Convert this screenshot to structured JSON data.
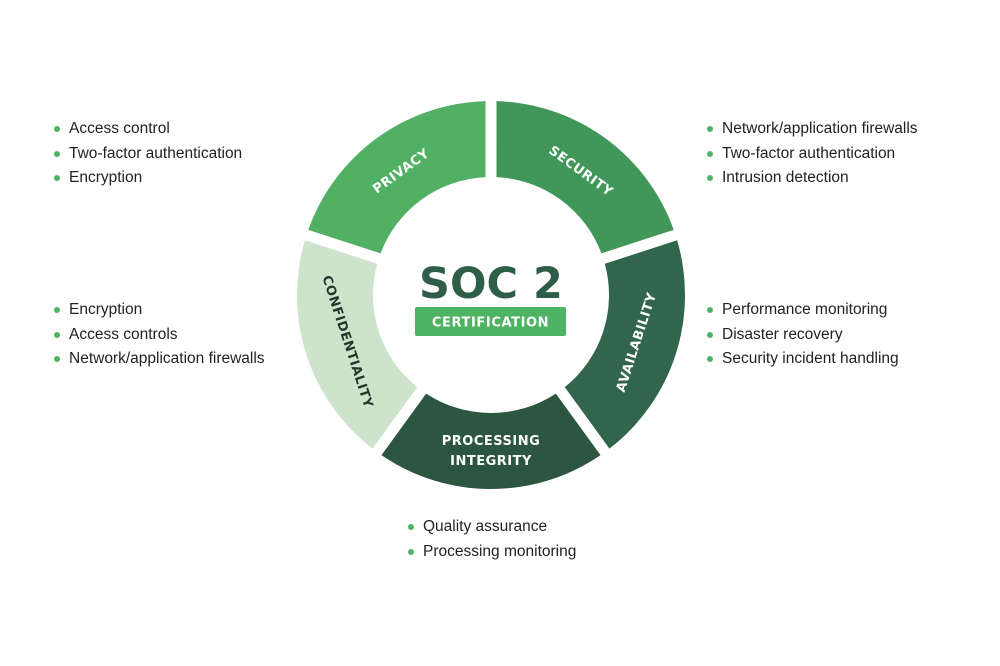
{
  "center": {
    "title": "SOC 2",
    "badge": "CERTIFICATION"
  },
  "colors": {
    "title": "#2f5e48",
    "badge_bg": "#4fb364",
    "badge_text": "#ffffff",
    "bullet": "#4fb364",
    "privacy": "#52b064",
    "security": "#41975a",
    "availability": "#31654c",
    "processing": "#2c5640",
    "confidentiality": "#cee3cb"
  },
  "segments": [
    {
      "id": "privacy",
      "label": "PRIVACY",
      "text_color": "#ffffff"
    },
    {
      "id": "security",
      "label": "SECURITY",
      "text_color": "#ffffff"
    },
    {
      "id": "availability",
      "label": "AVAILABILITY",
      "text_color": "#ffffff"
    },
    {
      "id": "processing",
      "label": [
        "PROCESSING",
        "INTEGRITY"
      ],
      "text_color": "#ffffff"
    },
    {
      "id": "confidentiality",
      "label": "CONFIDENTIALITY",
      "text_color": "#1f3a2c"
    }
  ],
  "lists": {
    "privacy": [
      "Access control",
      "Two-factor authentication",
      "Encryption"
    ],
    "security": [
      "Network/application firewalls",
      "Two-factor authentication",
      "Intrusion detection"
    ],
    "confidentiality": [
      "Encryption",
      "Access controls",
      "Network/application firewalls"
    ],
    "availability": [
      "Performance monitoring",
      "Disaster recovery",
      "Security incident handling"
    ],
    "processing": [
      "Quality assurance",
      "Processing monitoring"
    ]
  }
}
